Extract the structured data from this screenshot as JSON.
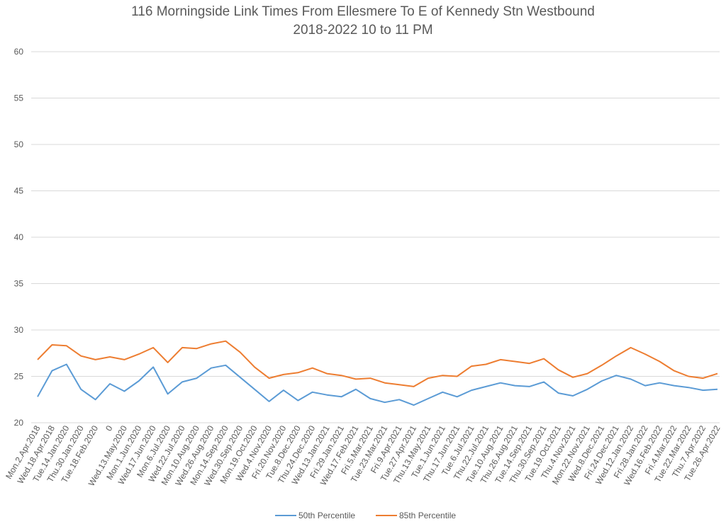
{
  "chart_data": {
    "type": "line",
    "title": "116 Morningside Link Times From Ellesmere To E of Kennedy Stn Westbound",
    "subtitle": "2018-2022 10 to 11 PM",
    "xlabel": "",
    "ylabel": "",
    "ylim": [
      20,
      60
    ],
    "yticks": [
      20,
      25,
      30,
      35,
      40,
      45,
      50,
      55,
      60
    ],
    "grid": true,
    "legend_position": "bottom",
    "categories": [
      "Mon.2.Apr.2018",
      "Wed.18.Apr.2018",
      "Tue.14.Jan.2020",
      "Thu.30.Jan.2020",
      "Tue.18.Feb.2020",
      "0",
      "Wed.13.May.2020",
      "Mon.1.Jun.2020",
      "Wed.17.Jun.2020",
      "Mon.6.Jul.2020",
      "Wed.22.Jul.2020",
      "Mon.10.Aug.2020",
      "Wed.26.Aug.2020",
      "Mon.14.Sep.2020",
      "Wed.30.Sep.2020",
      "Mon.19.Oct.2020",
      "Wed.4.Nov.2020",
      "Fri.20.Nov.2020",
      "Tue.8.Dec.2020",
      "Thu.24.Dec.2020",
      "Wed.13.Jan.2021",
      "Fri.29.Jan.2021",
      "Wed.17.Feb.2021",
      "Fri.5.Mar.2021",
      "Tue.23.Mar.2021",
      "Fri.9.Apr.2021",
      "Tue.27.Apr.2021",
      "Thu.13.May.2021",
      "Tue.1.Jun.2021",
      "Thu.17.Jun.2021",
      "Tue.6.Jul.2021",
      "Thu.22.Jul.2021",
      "Tue.10.Aug.2021",
      "Thu.26.Aug.2021",
      "Tue.14.Sep.2021",
      "Thu.30.Sep.2021",
      "Tue.19.Oct.2021",
      "Thu.4.Nov.2021",
      "Mon.22.Nov.2021",
      "Wed.8.Dec.2021",
      "Fri.24.Dec.2021",
      "Wed.12.Jan.2022",
      "Fri.28.Jan.2022",
      "Wed.16.Feb.2022",
      "Fri.4.Mar.2022",
      "Tue.22.Mar.2022",
      "Thu.7.Apr.2022",
      "Tue.26.Apr.2022"
    ],
    "series": [
      {
        "name": "50th Percentile",
        "color": "#5b9bd5",
        "values": [
          22.8,
          25.6,
          26.3,
          23.6,
          22.5,
          24.2,
          23.4,
          24.5,
          26.0,
          23.1,
          24.4,
          24.8,
          25.9,
          26.2,
          24.9,
          23.6,
          22.3,
          23.5,
          22.4,
          23.3,
          23.0,
          22.8,
          23.6,
          22.6,
          22.2,
          22.5,
          21.9,
          22.6,
          23.3,
          22.8,
          23.5,
          23.9,
          24.3,
          24.0,
          23.9,
          24.4,
          23.2,
          22.9,
          23.6,
          24.5,
          25.1,
          24.7,
          24.0,
          24.3,
          24.0,
          23.8,
          23.5,
          23.6
        ]
      },
      {
        "name": "85th Percentile",
        "color": "#ed7d31",
        "values": [
          26.8,
          28.4,
          28.3,
          27.2,
          26.8,
          27.1,
          26.8,
          27.4,
          28.1,
          26.5,
          28.1,
          28.0,
          28.5,
          28.8,
          27.6,
          26.0,
          24.8,
          25.2,
          25.4,
          25.9,
          25.3,
          25.1,
          24.7,
          24.8,
          24.3,
          24.1,
          23.9,
          24.8,
          25.1,
          25.0,
          26.1,
          26.3,
          26.8,
          26.6,
          26.4,
          26.9,
          25.7,
          24.9,
          25.3,
          26.2,
          27.2,
          28.1,
          27.4,
          26.6,
          25.6,
          25.0,
          24.8,
          25.3
        ]
      }
    ]
  }
}
